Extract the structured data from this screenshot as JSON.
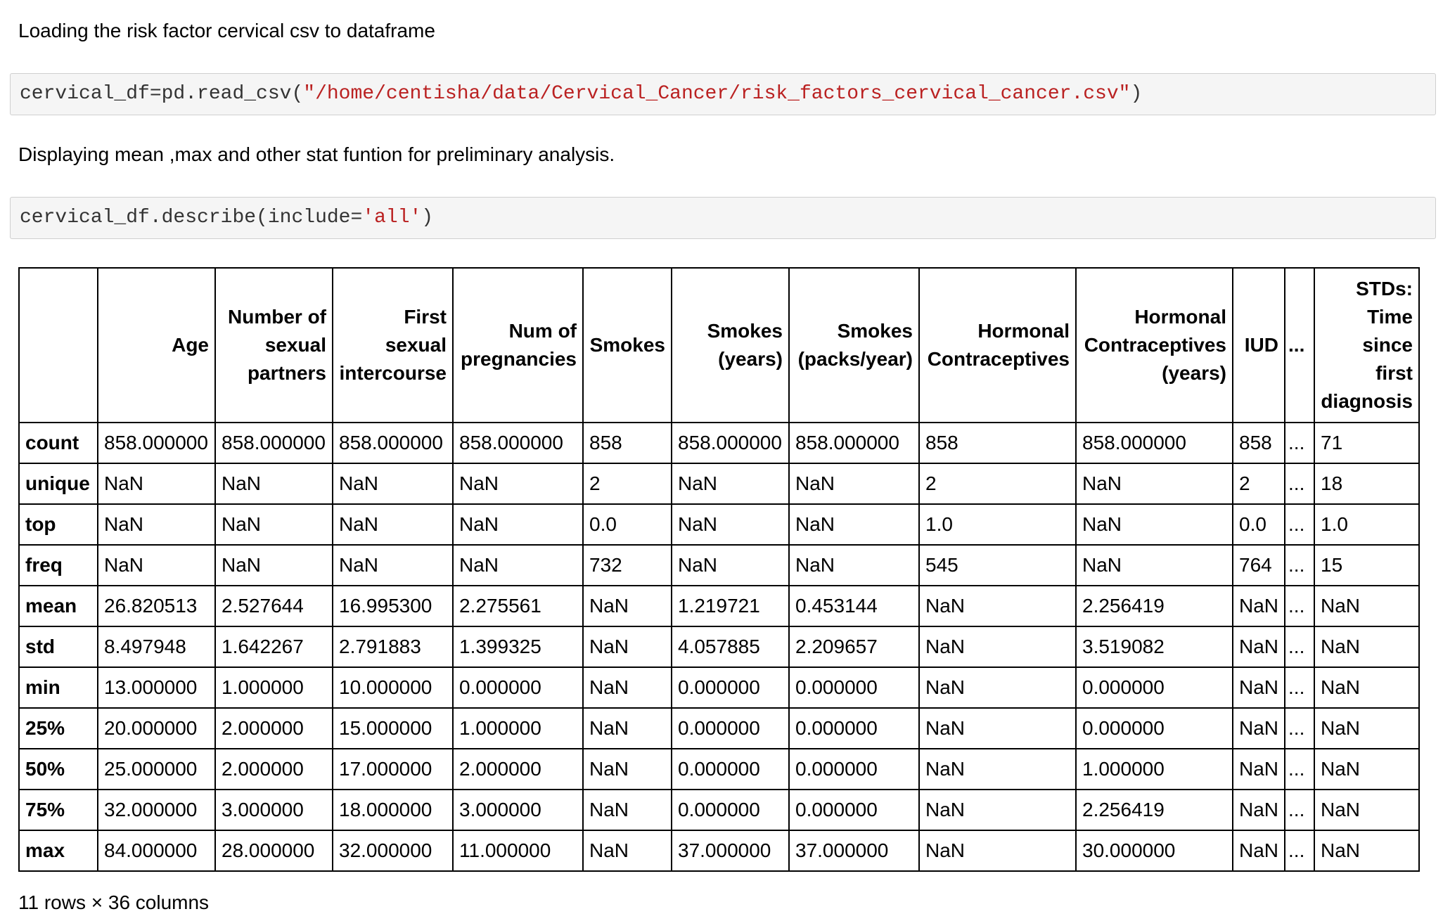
{
  "intro_text": "Loading the risk factor cervical csv to dataframe",
  "code1": {
    "prefix": "cervical_df=pd.read_csv(",
    "string": "\"/home/centisha/data/Cervical_Cancer/risk_factors_cervical_cancer.csv\"",
    "suffix": ")"
  },
  "stat_text": "Displaying mean ,max and other stat funtion for preliminary analysis.",
  "code2": {
    "prefix": "cervical_df.describe(include=",
    "string": "'all'",
    "suffix": ")"
  },
  "table": {
    "columns": [
      "",
      "Age",
      "Number of sexual partners",
      "First sexual intercourse",
      "Num of pregnancies",
      "Smokes",
      "Smokes (years)",
      "Smokes (packs/year)",
      "Hormonal Contraceptives",
      "Hormonal Contraceptives (years)",
      "IUD",
      "...",
      "STDs: Time since first diagnosis"
    ],
    "rows": [
      {
        "label": "count",
        "cells": [
          "858.000000",
          "858.000000",
          "858.000000",
          "858.000000",
          "858",
          "858.000000",
          "858.000000",
          "858",
          "858.000000",
          "858",
          "...",
          "71"
        ]
      },
      {
        "label": "unique",
        "cells": [
          "NaN",
          "NaN",
          "NaN",
          "NaN",
          "2",
          "NaN",
          "NaN",
          "2",
          "NaN",
          "2",
          "...",
          "18"
        ]
      },
      {
        "label": "top",
        "cells": [
          "NaN",
          "NaN",
          "NaN",
          "NaN",
          "0.0",
          "NaN",
          "NaN",
          "1.0",
          "NaN",
          "0.0",
          "...",
          "1.0"
        ]
      },
      {
        "label": "freq",
        "cells": [
          "NaN",
          "NaN",
          "NaN",
          "NaN",
          "732",
          "NaN",
          "NaN",
          "545",
          "NaN",
          "764",
          "...",
          "15"
        ]
      },
      {
        "label": "mean",
        "cells": [
          "26.820513",
          "2.527644",
          "16.995300",
          "2.275561",
          "NaN",
          "1.219721",
          "0.453144",
          "NaN",
          "2.256419",
          "NaN",
          "...",
          "NaN"
        ]
      },
      {
        "label": "std",
        "cells": [
          "8.497948",
          "1.642267",
          "2.791883",
          "1.399325",
          "NaN",
          "4.057885",
          "2.209657",
          "NaN",
          "3.519082",
          "NaN",
          "...",
          "NaN"
        ]
      },
      {
        "label": "min",
        "cells": [
          "13.000000",
          "1.000000",
          "10.000000",
          "0.000000",
          "NaN",
          "0.000000",
          "0.000000",
          "NaN",
          "0.000000",
          "NaN",
          "...",
          "NaN"
        ]
      },
      {
        "label": "25%",
        "cells": [
          "20.000000",
          "2.000000",
          "15.000000",
          "1.000000",
          "NaN",
          "0.000000",
          "0.000000",
          "NaN",
          "0.000000",
          "NaN",
          "...",
          "NaN"
        ]
      },
      {
        "label": "50%",
        "cells": [
          "25.000000",
          "2.000000",
          "17.000000",
          "2.000000",
          "NaN",
          "0.000000",
          "0.000000",
          "NaN",
          "1.000000",
          "NaN",
          "...",
          "NaN"
        ]
      },
      {
        "label": "75%",
        "cells": [
          "32.000000",
          "3.000000",
          "18.000000",
          "3.000000",
          "NaN",
          "0.000000",
          "0.000000",
          "NaN",
          "2.256419",
          "NaN",
          "...",
          "NaN"
        ]
      },
      {
        "label": "max",
        "cells": [
          "84.000000",
          "28.000000",
          "32.000000",
          "11.000000",
          "NaN",
          "37.000000",
          "37.000000",
          "NaN",
          "30.000000",
          "NaN",
          "...",
          "NaN"
        ]
      }
    ]
  },
  "shape_text": "11 rows × 36 columns"
}
